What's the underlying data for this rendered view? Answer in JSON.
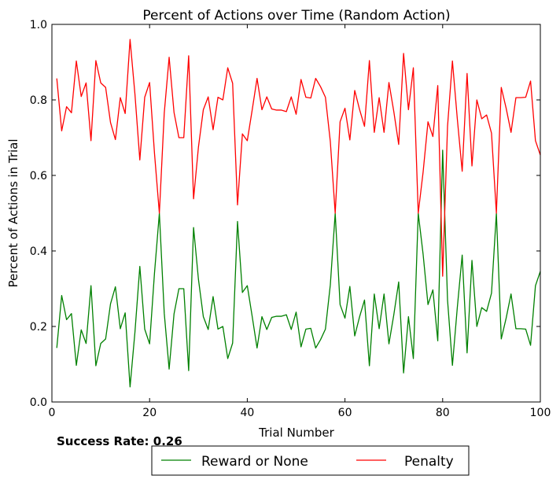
{
  "chart_data": {
    "type": "line",
    "title": "Percent of Actions over Time (Random Action)",
    "xlabel": "Trial Number",
    "ylabel": "Percent of Actions in Trial",
    "xlim": [
      0,
      100
    ],
    "ylim": [
      0.0,
      1.0
    ],
    "x_ticks": [
      "0",
      "20",
      "40",
      "60",
      "80",
      "100"
    ],
    "y_ticks": [
      "0.0",
      "0.2",
      "0.4",
      "0.6",
      "0.8",
      "1.0"
    ],
    "grid": false,
    "legend_position": "bottom-center",
    "x": [
      1,
      2,
      3,
      4,
      5,
      6,
      7,
      8,
      9,
      10,
      11,
      12,
      13,
      14,
      15,
      16,
      17,
      18,
      19,
      20,
      21,
      22,
      23,
      24,
      25,
      26,
      27,
      28,
      29,
      30,
      31,
      32,
      33,
      34,
      35,
      36,
      37,
      38,
      39,
      40,
      41,
      42,
      43,
      44,
      45,
      46,
      47,
      48,
      49,
      50,
      51,
      52,
      53,
      54,
      55,
      56,
      57,
      58,
      59,
      60,
      61,
      62,
      63,
      64,
      65,
      66,
      67,
      68,
      69,
      70,
      71,
      72,
      73,
      74,
      75,
      76,
      77,
      78,
      79,
      80,
      81,
      82,
      83,
      84,
      85,
      86,
      87,
      88,
      89,
      90,
      91,
      92,
      93,
      94,
      95,
      96,
      97,
      98,
      99,
      100
    ],
    "series": [
      {
        "name": "Reward or None",
        "color": "#008000",
        "values": [
          0.143,
          0.282,
          0.218,
          0.234,
          0.097,
          0.191,
          0.155,
          0.308,
          0.096,
          0.155,
          0.167,
          0.26,
          0.305,
          0.194,
          0.236,
          0.04,
          0.185,
          0.359,
          0.193,
          0.154,
          0.341,
          0.5,
          0.235,
          0.087,
          0.233,
          0.3,
          0.3,
          0.083,
          0.462,
          0.325,
          0.226,
          0.192,
          0.279,
          0.193,
          0.2,
          0.115,
          0.156,
          0.478,
          0.29,
          0.308,
          0.227,
          0.143,
          0.226,
          0.192,
          0.224,
          0.227,
          0.227,
          0.231,
          0.192,
          0.238,
          0.146,
          0.193,
          0.195,
          0.143,
          0.165,
          0.193,
          0.31,
          0.5,
          0.258,
          0.222,
          0.306,
          0.175,
          0.226,
          0.27,
          0.096,
          0.286,
          0.194,
          0.286,
          0.154,
          0.231,
          0.318,
          0.077,
          0.226,
          0.115,
          0.5,
          0.391,
          0.258,
          0.297,
          0.162,
          0.667,
          0.27,
          0.097,
          0.25,
          0.389,
          0.13,
          0.375,
          0.2,
          0.25,
          0.24,
          0.288,
          0.5,
          0.167,
          0.222,
          0.286,
          0.194,
          0.194,
          0.193,
          0.15,
          0.308,
          0.346
        ]
      },
      {
        "name": "Penalty",
        "color": "#ff0000",
        "values": [
          0.857,
          0.718,
          0.782,
          0.766,
          0.903,
          0.809,
          0.845,
          0.692,
          0.904,
          0.845,
          0.833,
          0.74,
          0.695,
          0.806,
          0.764,
          0.96,
          0.815,
          0.641,
          0.807,
          0.846,
          0.659,
          0.5,
          0.765,
          0.913,
          0.767,
          0.7,
          0.7,
          0.917,
          0.538,
          0.675,
          0.774,
          0.808,
          0.721,
          0.807,
          0.8,
          0.885,
          0.844,
          0.522,
          0.71,
          0.692,
          0.773,
          0.857,
          0.774,
          0.808,
          0.776,
          0.773,
          0.773,
          0.769,
          0.808,
          0.762,
          0.854,
          0.807,
          0.805,
          0.857,
          0.835,
          0.807,
          0.69,
          0.5,
          0.742,
          0.778,
          0.694,
          0.825,
          0.774,
          0.73,
          0.904,
          0.714,
          0.806,
          0.714,
          0.846,
          0.769,
          0.682,
          0.923,
          0.774,
          0.885,
          0.5,
          0.609,
          0.742,
          0.703,
          0.838,
          0.333,
          0.73,
          0.903,
          0.75,
          0.611,
          0.87,
          0.625,
          0.8,
          0.75,
          0.76,
          0.712,
          0.5,
          0.833,
          0.778,
          0.714,
          0.806,
          0.806,
          0.807,
          0.85,
          0.692,
          0.654
        ]
      }
    ]
  },
  "annotation": "Success Rate: 0.26"
}
